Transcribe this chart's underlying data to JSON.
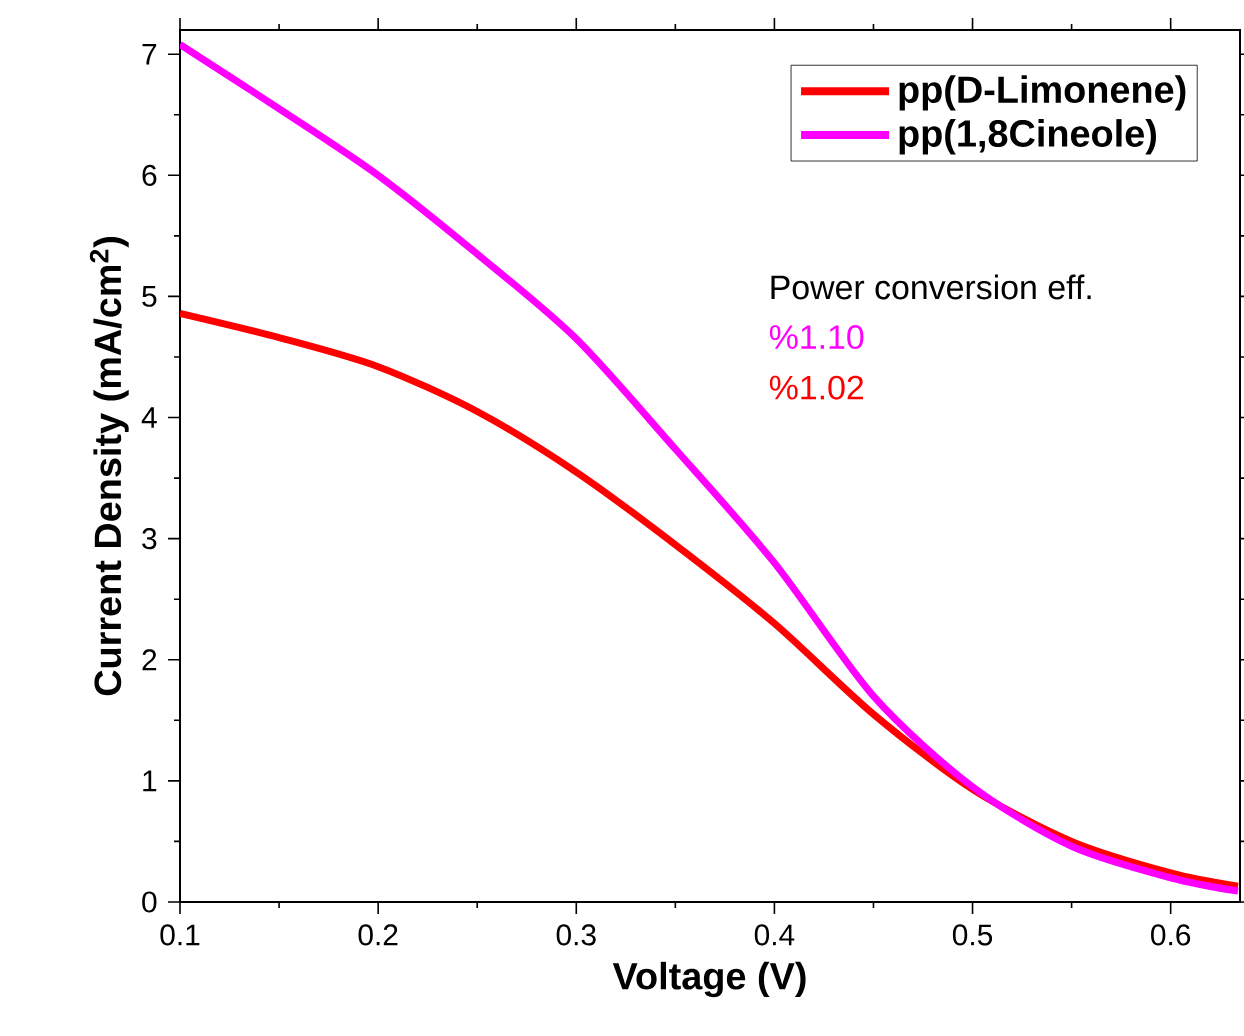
{
  "chart_data": {
    "type": "line",
    "xlabel": "Voltage (V)",
    "ylabel": "Current Density (mA/cm$^{2}$)",
    "x": [
      0.1,
      0.15,
      0.2,
      0.25,
      0.3,
      0.35,
      0.4,
      0.45,
      0.5,
      0.55,
      0.6,
      0.634
    ],
    "series": [
      {
        "name": "pp(D-Limonene)",
        "color": "#ff0000",
        "values": [
          4.86,
          4.66,
          4.42,
          4.05,
          3.55,
          2.95,
          2.3,
          1.55,
          0.93,
          0.5,
          0.24,
          0.13
        ]
      },
      {
        "name": "pp(1,8Cineole)",
        "color": "#ff00ff",
        "values": [
          7.08,
          6.55,
          6.0,
          5.35,
          4.65,
          3.74,
          2.8,
          1.7,
          0.95,
          0.46,
          0.2,
          0.09
        ]
      }
    ],
    "xlim": [
      0.1,
      0.635
    ],
    "ylim": [
      0,
      7.2
    ],
    "xticks": [
      0.1,
      0.2,
      0.3,
      0.4,
      0.5,
      0.6
    ],
    "yticks": [
      0,
      1,
      2,
      3,
      4,
      5,
      6,
      7
    ],
    "legend": "top right",
    "grid": false,
    "marker": "none",
    "line_style": "solid",
    "annotations": [
      "Power conversion eff.",
      "%1.10",
      "%1.02"
    ]
  }
}
